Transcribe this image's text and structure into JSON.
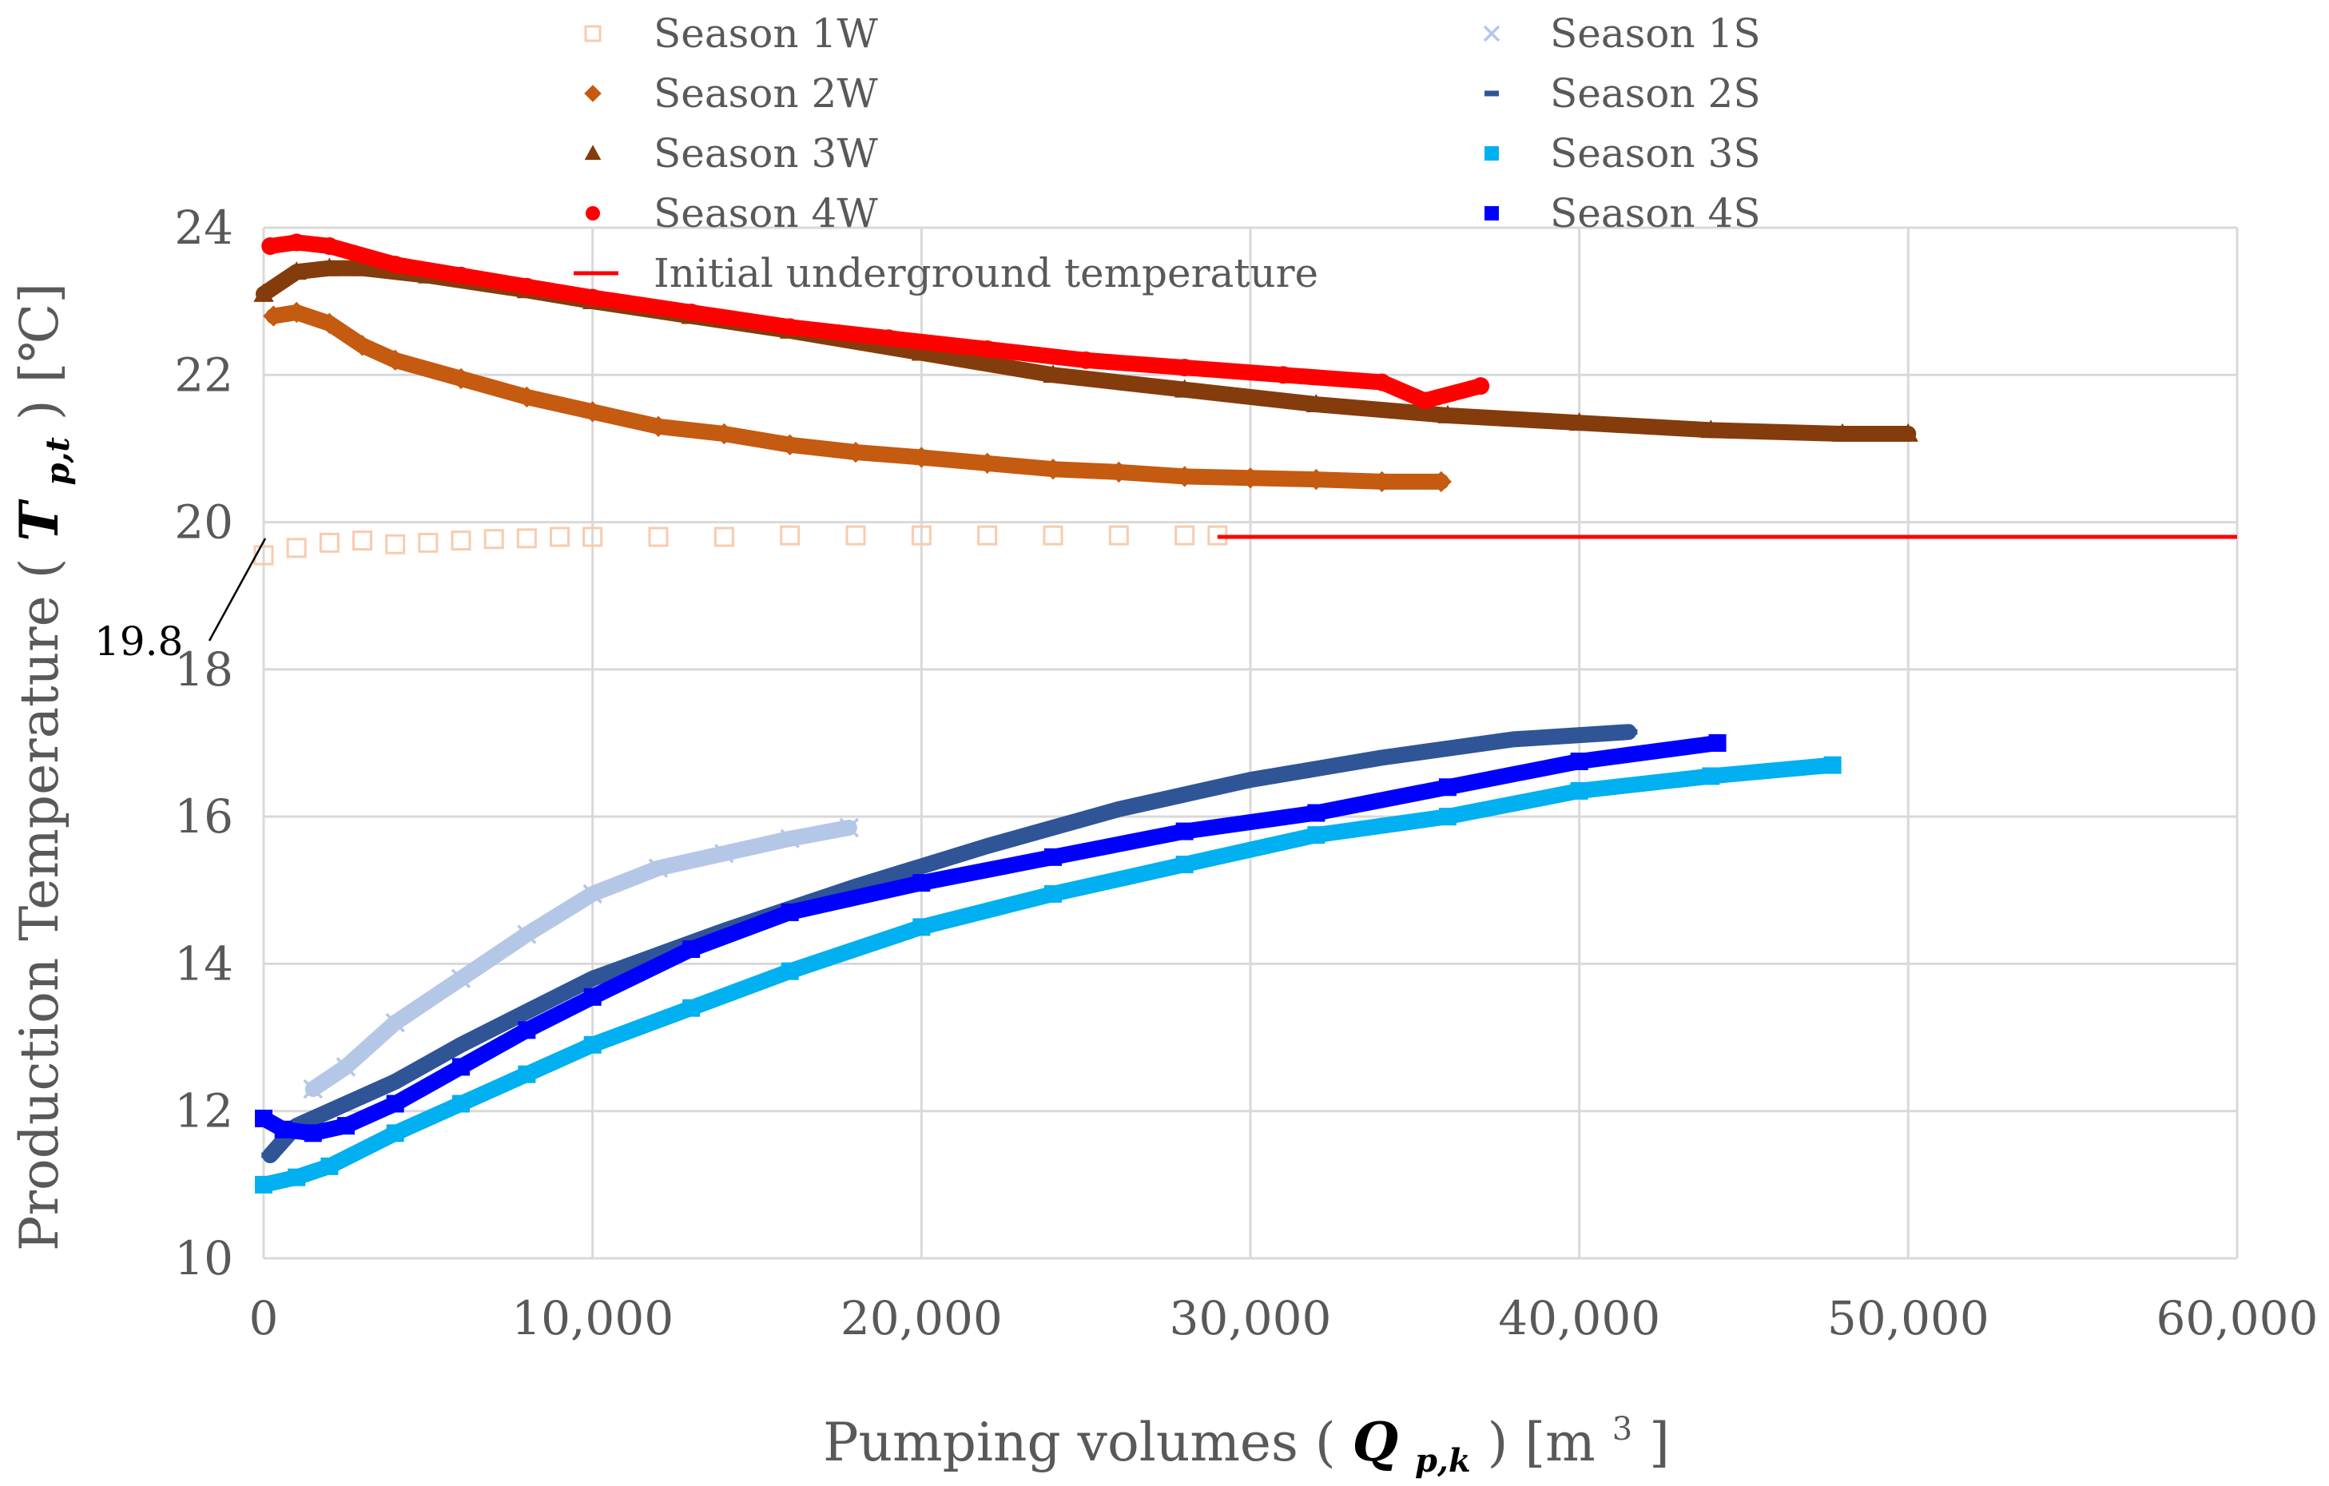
{
  "chart_data": {
    "type": "scatter",
    "title": "",
    "xlabel": "Pumping volumes",
    "xlabel_symbol": "Q",
    "xlabel_subscript": "p,k",
    "xlabel_unit": "[m",
    "xlabel_unit_sup": "3",
    "xlabel_unit_close": "]",
    "ylabel": "Production Temperature",
    "ylabel_symbol": "T",
    "ylabel_subscript": "p,t",
    "ylabel_unit": "[℃]",
    "xlim": [
      0,
      60000
    ],
    "ylim": [
      10,
      24
    ],
    "xticks": [
      0,
      10000,
      20000,
      30000,
      40000,
      50000,
      60000
    ],
    "xtick_labels": [
      "0",
      "10,000",
      "20,000",
      "30,000",
      "40,000",
      "50,000",
      "60,000"
    ],
    "yticks": [
      10,
      12,
      14,
      16,
      18,
      20,
      22,
      24
    ],
    "ytick_labels": [
      "10",
      "12",
      "14",
      "16",
      "18",
      "20",
      "22",
      "24"
    ],
    "grid": true,
    "legend_position": "top",
    "annotation": {
      "text": "19.8",
      "y": 19.8
    },
    "series": [
      {
        "name": "Season 1W",
        "marker": "square-open",
        "color": "#F8CBAD",
        "x": [
          0,
          1000,
          2000,
          3000,
          4000,
          5000,
          6000,
          7000,
          8000,
          9000,
          10000,
          12000,
          14000,
          16000,
          18000,
          20000,
          22000,
          24000,
          26000,
          28000,
          29000
        ],
        "y": [
          19.55,
          19.65,
          19.72,
          19.75,
          19.7,
          19.72,
          19.75,
          19.77,
          19.78,
          19.8,
          19.8,
          19.8,
          19.8,
          19.82,
          19.82,
          19.82,
          19.82,
          19.82,
          19.82,
          19.82,
          19.82
        ]
      },
      {
        "name": "Season 2W",
        "marker": "diamond",
        "color": "#C55A11",
        "x": [
          300,
          1000,
          2000,
          3000,
          4000,
          6000,
          8000,
          10000,
          12000,
          14000,
          16000,
          18000,
          20000,
          22000,
          24000,
          26000,
          28000,
          30000,
          32000,
          34000,
          35800
        ],
        "y": [
          22.8,
          22.85,
          22.7,
          22.4,
          22.2,
          21.95,
          21.7,
          21.5,
          21.3,
          21.2,
          21.05,
          20.95,
          20.88,
          20.8,
          20.72,
          20.68,
          20.62,
          20.6,
          20.58,
          20.55,
          20.55
        ]
      },
      {
        "name": "Season 3W",
        "marker": "triangle",
        "color": "#843C0C",
        "x": [
          0,
          1000,
          2000,
          3000,
          5000,
          8000,
          10000,
          13000,
          16000,
          20000,
          24000,
          28000,
          32000,
          36000,
          40000,
          44000,
          48000,
          50000
        ],
        "y": [
          23.1,
          23.4,
          23.45,
          23.45,
          23.35,
          23.15,
          23.0,
          22.8,
          22.6,
          22.3,
          22.0,
          21.8,
          21.6,
          21.45,
          21.35,
          21.25,
          21.2,
          21.2
        ]
      },
      {
        "name": "Season 4W",
        "marker": "circle",
        "color": "#FF0000",
        "x": [
          200,
          1000,
          2000,
          4000,
          6000,
          8000,
          10000,
          13000,
          16000,
          19000,
          22000,
          25000,
          28000,
          31000,
          34000,
          35300,
          37000
        ],
        "y": [
          23.75,
          23.8,
          23.75,
          23.5,
          23.35,
          23.2,
          23.05,
          22.85,
          22.65,
          22.5,
          22.35,
          22.2,
          22.1,
          22.0,
          21.9,
          21.65,
          21.85
        ]
      },
      {
        "name": "Season 1S",
        "marker": "cross",
        "color": "#B4C7E7",
        "x": [
          1500,
          2500,
          4000,
          6000,
          8000,
          10000,
          12000,
          14000,
          16000,
          17800
        ],
        "y": [
          12.3,
          12.6,
          13.2,
          13.8,
          14.4,
          14.95,
          15.3,
          15.5,
          15.7,
          15.85
        ]
      },
      {
        "name": "Season 2S",
        "marker": "dash",
        "color": "#2F5597",
        "x": [
          200,
          1000,
          2000,
          4000,
          6000,
          8000,
          10000,
          14000,
          18000,
          22000,
          26000,
          30000,
          34000,
          38000,
          41500
        ],
        "y": [
          11.4,
          11.8,
          12.0,
          12.4,
          12.9,
          13.35,
          13.8,
          14.45,
          15.05,
          15.6,
          16.1,
          16.5,
          16.8,
          17.05,
          17.15
        ]
      },
      {
        "name": "Season 3S",
        "marker": "square",
        "color": "#00B0F0",
        "x": [
          0,
          1000,
          2000,
          4000,
          6000,
          8000,
          10000,
          13000,
          16000,
          20000,
          24000,
          28000,
          32000,
          36000,
          40000,
          44000,
          47700
        ],
        "y": [
          11.0,
          11.1,
          11.25,
          11.7,
          12.1,
          12.5,
          12.9,
          13.4,
          13.9,
          14.5,
          14.95,
          15.35,
          15.75,
          16.0,
          16.35,
          16.55,
          16.7
        ]
      },
      {
        "name": "Season 4S",
        "marker": "square",
        "color": "#0000FF",
        "x": [
          0,
          600,
          1500,
          2500,
          4000,
          6000,
          8000,
          10000,
          13000,
          16000,
          20000,
          24000,
          28000,
          32000,
          36000,
          40000,
          44200
        ],
        "y": [
          11.9,
          11.75,
          11.7,
          11.8,
          12.1,
          12.6,
          13.1,
          13.55,
          14.2,
          14.7,
          15.1,
          15.45,
          15.8,
          16.05,
          16.4,
          16.75,
          17.0
        ]
      },
      {
        "name": "Initial underground temperature",
        "marker": "line",
        "color": "#FF0000",
        "x": [
          29000,
          60000
        ],
        "y": [
          19.8,
          19.8
        ]
      }
    ]
  }
}
